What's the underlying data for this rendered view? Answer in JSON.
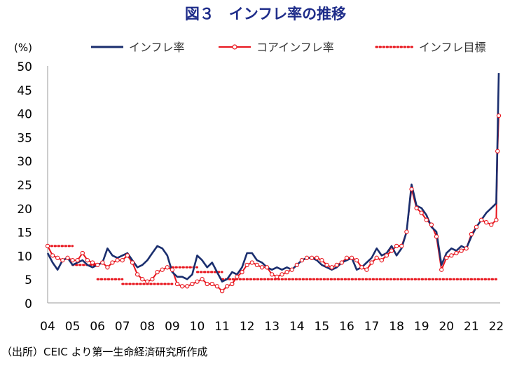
{
  "chart_data": {
    "type": "line",
    "title": "図３　インフレ率の推移",
    "ylabel": "(%)",
    "xlabel": "",
    "source": "（出所）CEIC より第一生命経済研究所作成",
    "ylim": [
      0,
      50
    ],
    "y_ticks": [
      "0",
      "5",
      "10",
      "15",
      "20",
      "25",
      "30",
      "35",
      "40",
      "45",
      "50"
    ],
    "x_ticks": [
      "04",
      "05",
      "06",
      "07",
      "08",
      "09",
      "10",
      "11",
      "12",
      "13",
      "14",
      "15",
      "16",
      "17",
      "18",
      "19",
      "20",
      "21",
      "22"
    ],
    "x_range": [
      2004.0,
      2022.1
    ],
    "legend_position": "top",
    "colors": {
      "inflation": "#1a2e6e",
      "core": "#e8131b",
      "target": "#e8131b",
      "title": "#1f2d8a"
    },
    "series": [
      {
        "name": "インフレ率",
        "style": "solid",
        "x": [
          2004.0,
          2004.2,
          2004.4,
          2004.6,
          2004.8,
          2005.0,
          2005.2,
          2005.4,
          2005.6,
          2005.8,
          2006.0,
          2006.2,
          2006.4,
          2006.6,
          2006.8,
          2007.0,
          2007.2,
          2007.4,
          2007.6,
          2007.8,
          2008.0,
          2008.2,
          2008.4,
          2008.6,
          2008.8,
          2009.0,
          2009.2,
          2009.4,
          2009.6,
          2009.8,
          2010.0,
          2010.2,
          2010.4,
          2010.6,
          2010.8,
          2011.0,
          2011.2,
          2011.4,
          2011.6,
          2011.8,
          2012.0,
          2012.2,
          2012.4,
          2012.6,
          2012.8,
          2013.0,
          2013.2,
          2013.4,
          2013.6,
          2013.8,
          2014.0,
          2014.2,
          2014.4,
          2014.6,
          2014.8,
          2015.0,
          2015.2,
          2015.4,
          2015.6,
          2015.8,
          2016.0,
          2016.2,
          2016.4,
          2016.6,
          2016.8,
          2017.0,
          2017.2,
          2017.4,
          2017.6,
          2017.8,
          2018.0,
          2018.2,
          2018.4,
          2018.6,
          2018.8,
          2019.0,
          2019.2,
          2019.4,
          2019.6,
          2019.8,
          2020.0,
          2020.2,
          2020.4,
          2020.6,
          2020.8,
          2021.0,
          2021.2,
          2021.4,
          2021.6,
          2021.8,
          2022.0,
          2022.1
        ],
        "values": [
          10.5,
          8.5,
          7.0,
          9.0,
          9.5,
          8.0,
          8.5,
          9.0,
          8.0,
          7.5,
          8.0,
          8.5,
          11.5,
          10.0,
          9.5,
          10.0,
          10.5,
          9.0,
          7.5,
          8.0,
          9.0,
          10.5,
          12.0,
          11.5,
          10.0,
          6.5,
          5.5,
          5.5,
          5.0,
          6.0,
          10.0,
          9.0,
          7.5,
          8.5,
          6.5,
          4.5,
          5.0,
          6.5,
          6.0,
          7.5,
          10.5,
          10.5,
          9.0,
          8.5,
          7.5,
          7.0,
          7.5,
          7.0,
          7.5,
          7.0,
          8.0,
          9.0,
          9.5,
          9.5,
          9.0,
          8.0,
          7.5,
          7.0,
          7.5,
          8.5,
          9.0,
          9.5,
          7.0,
          7.5,
          8.5,
          9.5,
          11.5,
          10.0,
          10.5,
          12.0,
          10.0,
          11.5,
          15.0,
          25.0,
          20.5,
          20.0,
          18.5,
          16.0,
          15.0,
          8.0,
          10.5,
          11.5,
          11.0,
          12.0,
          11.5,
          14.0,
          16.0,
          17.5,
          19.0,
          20.0,
          21.0,
          48.5
        ]
      },
      {
        "name": "コアインフレ率",
        "style": "solid-markers",
        "x": [
          2004.0,
          2004.2,
          2004.4,
          2004.6,
          2004.8,
          2005.0,
          2005.2,
          2005.4,
          2005.6,
          2005.8,
          2006.0,
          2006.2,
          2006.4,
          2006.6,
          2006.8,
          2007.0,
          2007.2,
          2007.4,
          2007.6,
          2007.8,
          2008.0,
          2008.2,
          2008.4,
          2008.6,
          2008.8,
          2009.0,
          2009.2,
          2009.4,
          2009.6,
          2009.8,
          2010.0,
          2010.2,
          2010.4,
          2010.6,
          2010.8,
          2011.0,
          2011.2,
          2011.4,
          2011.6,
          2011.8,
          2012.0,
          2012.2,
          2012.4,
          2012.6,
          2012.8,
          2013.0,
          2013.2,
          2013.4,
          2013.6,
          2013.8,
          2014.0,
          2014.2,
          2014.4,
          2014.6,
          2014.8,
          2015.0,
          2015.2,
          2015.4,
          2015.6,
          2015.8,
          2016.0,
          2016.2,
          2016.4,
          2016.6,
          2016.8,
          2017.0,
          2017.2,
          2017.4,
          2017.6,
          2017.8,
          2018.0,
          2018.2,
          2018.4,
          2018.6,
          2018.8,
          2019.0,
          2019.2,
          2019.4,
          2019.6,
          2019.8,
          2020.0,
          2020.2,
          2020.4,
          2020.6,
          2020.8,
          2021.0,
          2021.2,
          2021.4,
          2021.6,
          2021.8,
          2022.0,
          2022.05,
          2022.1
        ],
        "values": [
          12.0,
          10.0,
          9.5,
          9.0,
          9.5,
          9.0,
          9.0,
          10.5,
          9.0,
          8.5,
          8.0,
          8.5,
          7.5,
          8.5,
          9.0,
          9.0,
          10.0,
          8.5,
          6.0,
          5.0,
          4.5,
          5.0,
          6.5,
          7.0,
          7.5,
          7.0,
          4.0,
          3.5,
          3.5,
          4.0,
          4.5,
          5.0,
          4.0,
          4.0,
          3.5,
          2.5,
          3.5,
          4.0,
          5.5,
          6.5,
          8.0,
          8.5,
          8.0,
          7.5,
          7.5,
          6.0,
          5.5,
          6.0,
          6.5,
          7.0,
          8.0,
          9.0,
          9.5,
          9.5,
          9.5,
          9.0,
          8.0,
          7.5,
          8.0,
          8.5,
          9.5,
          9.5,
          9.0,
          7.5,
          7.0,
          8.5,
          9.5,
          9.0,
          10.0,
          11.0,
          12.0,
          12.0,
          15.0,
          24.0,
          20.0,
          19.0,
          17.5,
          16.5,
          14.0,
          7.0,
          9.5,
          10.0,
          10.5,
          11.0,
          11.5,
          14.5,
          16.0,
          17.5,
          17.0,
          16.5,
          17.5,
          32.0,
          39.5
        ]
      },
      {
        "name": "インフレ目標",
        "style": "dotted",
        "segments": [
          {
            "x": [
              2004.0,
              2005.0
            ],
            "values": [
              12,
              12
            ]
          },
          {
            "x": [
              2005.0,
              2006.0
            ],
            "values": [
              8,
              8
            ]
          },
          {
            "x": [
              2006.0,
              2007.0
            ],
            "values": [
              5,
              5
            ]
          },
          {
            "x": [
              2007.0,
              2009.0
            ],
            "values": [
              4,
              4
            ]
          },
          {
            "x": [
              2009.0,
              2010.0
            ],
            "values": [
              7.5,
              7.5
            ]
          },
          {
            "x": [
              2010.0,
              2011.0
            ],
            "values": [
              6.5,
              6.5
            ]
          },
          {
            "x": [
              2011.0,
              2022.0
            ],
            "values": [
              5,
              5
            ]
          }
        ]
      }
    ]
  }
}
